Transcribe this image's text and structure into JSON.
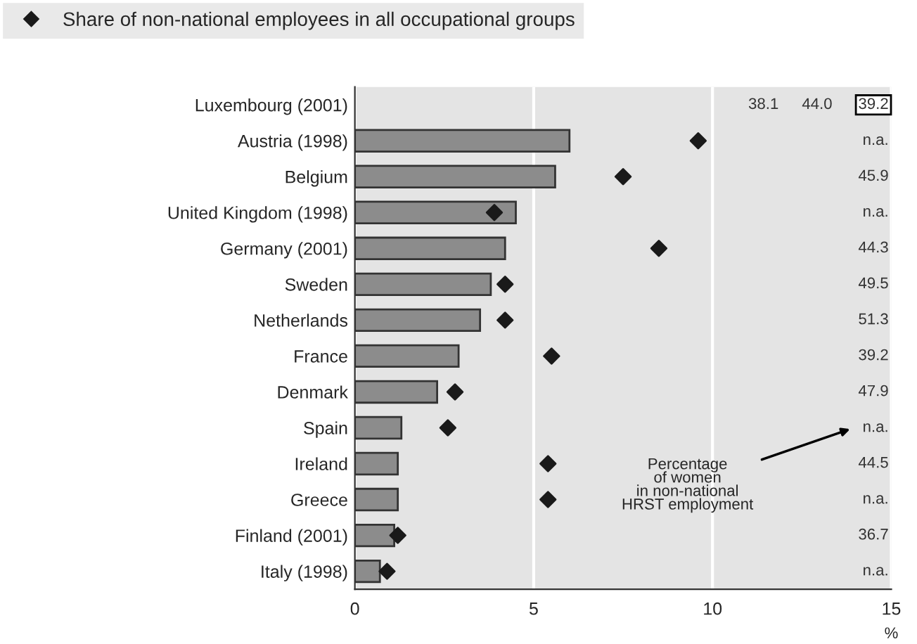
{
  "chart_data": {
    "type": "bar",
    "orientation": "horizontal",
    "categories": [
      "Luxembourg (2001)",
      "Austria (1998)",
      "Belgium",
      "United Kingdom (1998)",
      "Germany (2001)",
      "Sweden",
      "Netherlands",
      "France",
      "Denmark",
      "Spain",
      "Ireland",
      "Greece",
      "Finland (2001)",
      "Italy (1998)"
    ],
    "series": [
      {
        "color": "#8c8c8c",
        "values": [
          null,
          6.0,
          5.6,
          4.5,
          4.2,
          3.8,
          3.5,
          2.9,
          2.3,
          1.3,
          1.2,
          1.2,
          1.1,
          0.7
        ]
      },
      {
        "type": "scatter",
        "name": "Share of non-national employees in all occupational groups",
        "color": "#1a1a1a",
        "marker": "diamond",
        "values": [
          null,
          9.6,
          7.5,
          3.9,
          8.5,
          4.2,
          4.2,
          5.5,
          2.8,
          2.6,
          5.4,
          5.4,
          1.2,
          0.9
        ]
      }
    ],
    "xlim": [
      0,
      15
    ],
    "xticks": [
      0,
      5,
      10,
      15
    ],
    "xlabel": "%",
    "grid": "x",
    "legend": "top",
    "annotations": [
      "39.2",
      "n.a.",
      "45.9",
      "n.a.",
      "44.3",
      "49.5",
      "51.3",
      "39.2",
      "47.9",
      "n.a.",
      "44.5",
      "n.a.",
      "36.7",
      "n.a.",
      "38.1",
      "44.0",
      "Percentage\nof women\nin non-national\nHRST employment"
    ]
  }
}
